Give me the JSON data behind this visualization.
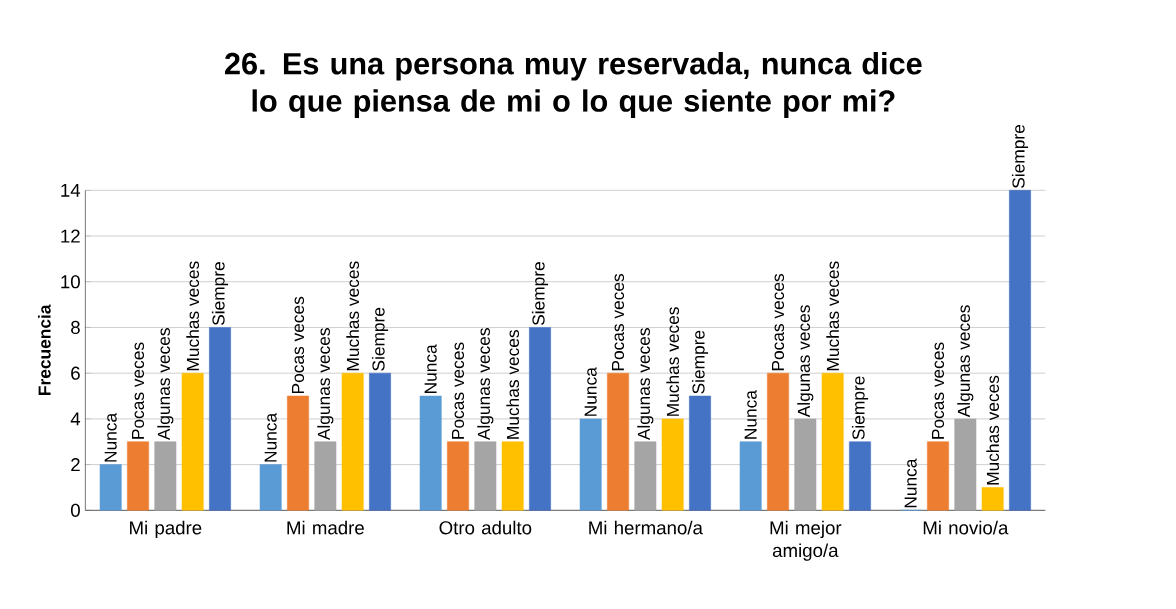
{
  "chart_data": {
    "type": "bar",
    "title": "26. Es una persona muy reservada, nunca dice lo que piensa de mi o lo que siente por mi?",
    "ylabel": "Frecuencia",
    "categories": [
      "Mi padre",
      "Mi madre",
      "Otro adulto",
      "Mi hermano/a",
      "Mi mejor amigo/a",
      "Mi novio/a"
    ],
    "series": [
      {
        "name": "Nunca",
        "color": "#5b9bd5",
        "values": [
          2,
          2,
          5,
          4,
          3,
          0
        ]
      },
      {
        "name": "Pocas veces",
        "color": "#ed7d31",
        "values": [
          3,
          5,
          3,
          6,
          6,
          3
        ]
      },
      {
        "name": "Algunas veces",
        "color": "#a5a5a5",
        "values": [
          3,
          3,
          3,
          3,
          4,
          4
        ]
      },
      {
        "name": "Muchas veces",
        "color": "#ffc000",
        "values": [
          6,
          6,
          3,
          4,
          6,
          1
        ]
      },
      {
        "name": "Siempre",
        "color": "#4472c4",
        "values": [
          8,
          6,
          8,
          5,
          3,
          14
        ]
      }
    ],
    "ylim": [
      0,
      14
    ],
    "yticks": [
      0,
      2,
      4,
      6,
      8,
      10,
      12,
      14
    ],
    "grid": "y"
  }
}
